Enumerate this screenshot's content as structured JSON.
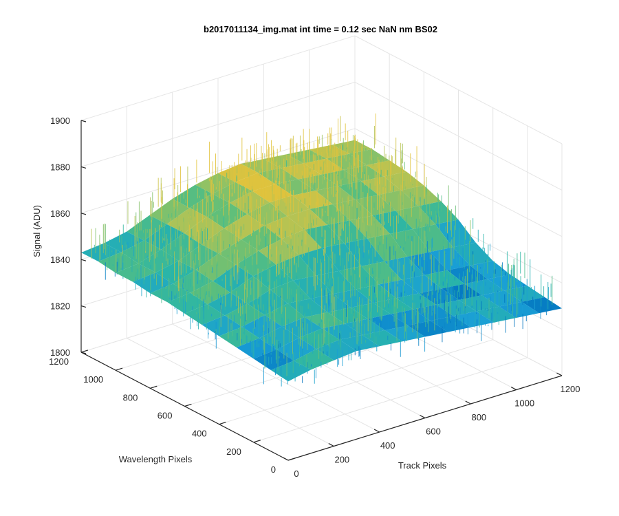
{
  "chart_data": {
    "type": "surface",
    "title": "b2017011134_img.mat int time = 0.12 sec  NaN nm BS02",
    "xlabel": "Track Pixels",
    "ylabel": "Wavelength Pixels",
    "zlabel": "Signal (ADU)",
    "xlim": [
      0,
      1200
    ],
    "ylim": [
      0,
      1200
    ],
    "zlim": [
      1800,
      1900
    ],
    "x_ticks": [
      "0",
      "200",
      "400",
      "600",
      "800",
      "1000",
      "1200"
    ],
    "y_ticks": [
      "0",
      "200",
      "400",
      "600",
      "800",
      "1000",
      "1200"
    ],
    "z_ticks": [
      "1800",
      "1820",
      "1840",
      "1860",
      "1880",
      "1900"
    ],
    "grid": true,
    "colormap": [
      "#0072bd",
      "#1a9fd6",
      "#2ab5a7",
      "#5fbf7a",
      "#a9c35a",
      "#e2c33c"
    ],
    "surface_levels": [
      [
        1834,
        1836,
        1837,
        1838,
        1837,
        1836,
        1835,
        1834,
        1833,
        1832,
        1831,
        1830,
        1829
      ],
      [
        1835,
        1836,
        1838,
        1839,
        1838,
        1837,
        1836,
        1835,
        1834,
        1833,
        1832,
        1831,
        1830
      ],
      [
        1836,
        1837,
        1839,
        1840,
        1839,
        1838,
        1837,
        1836,
        1835,
        1834,
        1833,
        1832,
        1831
      ],
      [
        1837,
        1838,
        1840,
        1841,
        1840,
        1839,
        1838,
        1837,
        1836,
        1835,
        1834,
        1833,
        1832
      ],
      [
        1838,
        1839,
        1841,
        1843,
        1842,
        1841,
        1840,
        1839,
        1838,
        1837,
        1836,
        1835,
        1834
      ],
      [
        1839,
        1840,
        1842,
        1845,
        1846,
        1845,
        1844,
        1843,
        1842,
        1841,
        1840,
        1839,
        1838
      ],
      [
        1840,
        1841,
        1843,
        1847,
        1849,
        1850,
        1850,
        1849,
        1848,
        1847,
        1846,
        1845,
        1844
      ],
      [
        1841,
        1842,
        1844,
        1848,
        1851,
        1853,
        1854,
        1853,
        1852,
        1851,
        1850,
        1849,
        1848
      ],
      [
        1841,
        1842,
        1845,
        1849,
        1852,
        1855,
        1856,
        1856,
        1855,
        1854,
        1853,
        1852,
        1851
      ],
      [
        1842,
        1843,
        1845,
        1849,
        1853,
        1856,
        1858,
        1858,
        1857,
        1856,
        1855,
        1854,
        1853
      ],
      [
        1842,
        1843,
        1846,
        1850,
        1854,
        1857,
        1859,
        1859,
        1858,
        1857,
        1856,
        1855,
        1854
      ],
      [
        1843,
        1844,
        1846,
        1850,
        1854,
        1857,
        1859,
        1860,
        1859,
        1858,
        1857,
        1856,
        1855
      ],
      [
        1843,
        1844,
        1846,
        1850,
        1854,
        1857,
        1859,
        1860,
        1859,
        1858,
        1857,
        1856,
        1855
      ]
    ]
  }
}
